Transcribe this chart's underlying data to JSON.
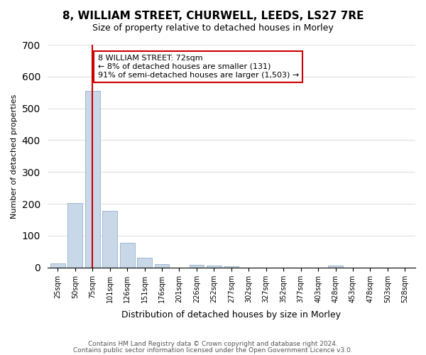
{
  "title": "8, WILLIAM STREET, CHURWELL, LEEDS, LS27 7RE",
  "subtitle": "Size of property relative to detached houses in Morley",
  "xlabel": "Distribution of detached houses by size in Morley",
  "ylabel": "Number of detached properties",
  "categories": [
    "25sqm",
    "50sqm",
    "75sqm",
    "101sqm",
    "126sqm",
    "151sqm",
    "176sqm",
    "201sqm",
    "226sqm",
    "252sqm",
    "277sqm",
    "302sqm",
    "327sqm",
    "352sqm",
    "377sqm",
    "403sqm",
    "428sqm",
    "453sqm",
    "478sqm",
    "503sqm",
    "528sqm"
  ],
  "values": [
    12,
    203,
    555,
    178,
    78,
    30,
    11,
    0,
    9,
    5,
    4,
    0,
    0,
    0,
    0,
    0,
    5,
    0,
    0,
    0,
    0
  ],
  "bar_color": "#c8d8e8",
  "bar_edge_color": "#a0b8d0",
  "vline_index": 2,
  "vline_color": "#cc0000",
  "annotation_line1": "8 WILLIAM STREET: 72sqm",
  "annotation_line2": "← 8% of detached houses are smaller (131)",
  "annotation_line3": "91% of semi-detached houses are larger (1,503) →",
  "annotation_box_color": "#ffffff",
  "annotation_box_edge": "#cc0000",
  "ylim": [
    0,
    700
  ],
  "yticks": [
    0,
    100,
    200,
    300,
    400,
    500,
    600,
    700
  ],
  "footer_line1": "Contains HM Land Registry data © Crown copyright and database right 2024.",
  "footer_line2": "Contains public sector information licensed under the Open Government Licence v3.0.",
  "background_color": "#ffffff",
  "grid_color": "#e0e0e0"
}
